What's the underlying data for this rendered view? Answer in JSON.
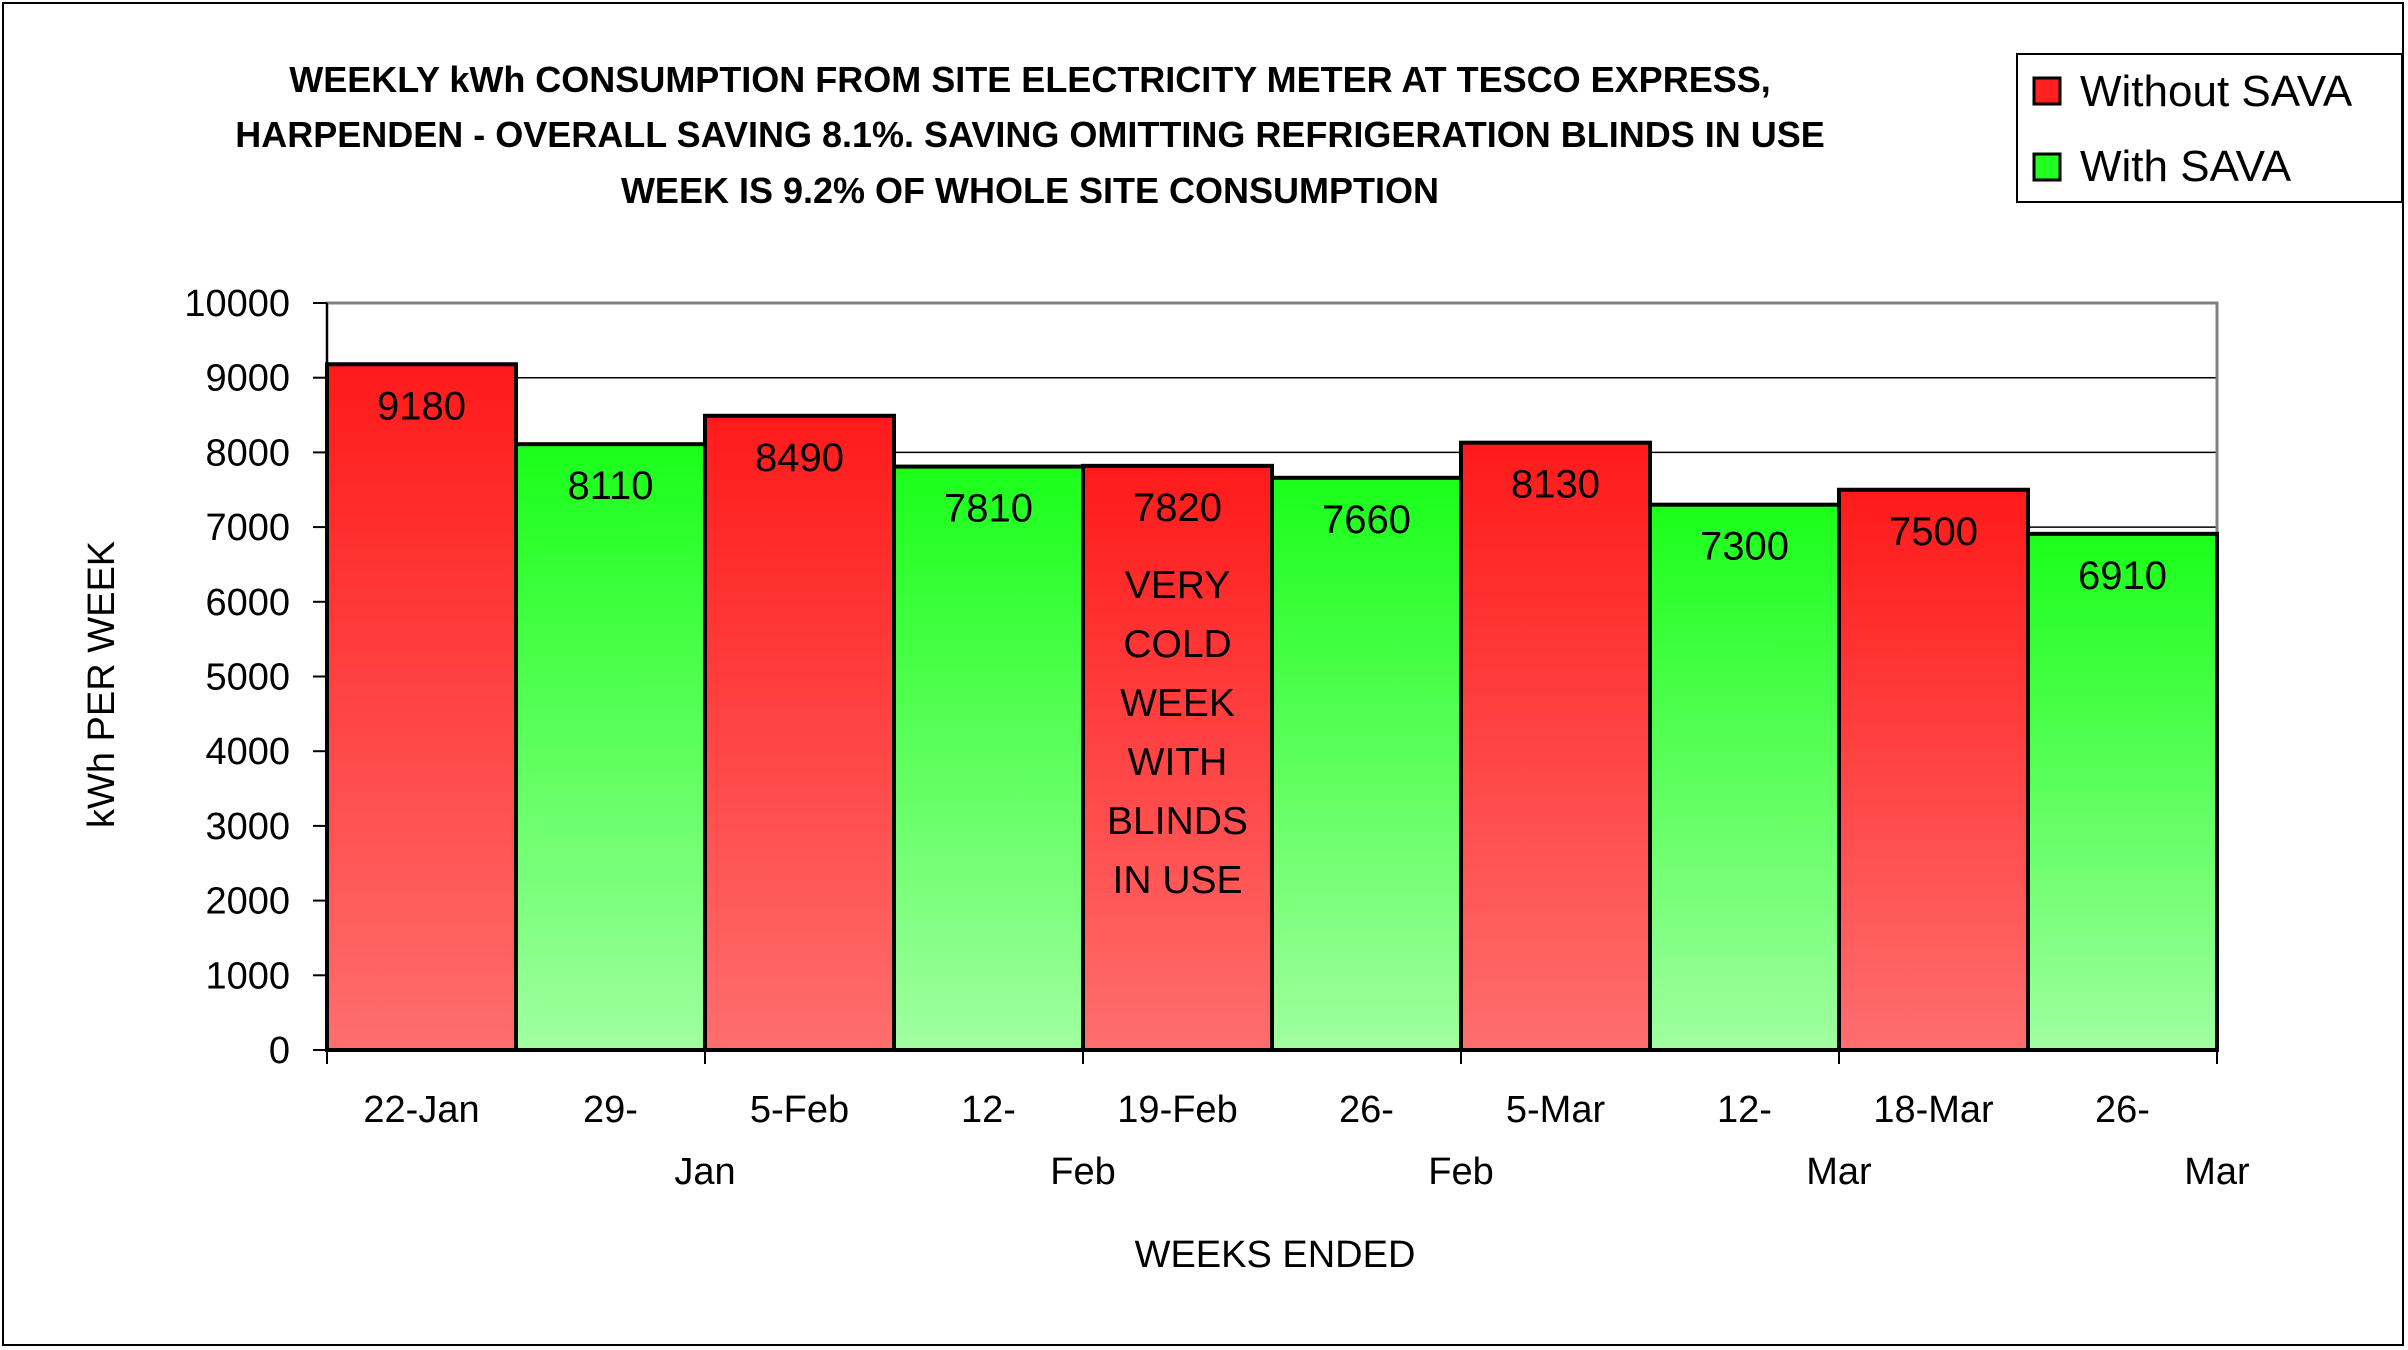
{
  "chart_data": {
    "type": "bar",
    "title_lines": [
      "WEEKLY kWh CONSUMPTION FROM SITE ELECTRICITY METER AT TESCO EXPRESS,",
      "HARPENDEN - OVERALL SAVING 8.1%. SAVING OMITTING REFRIGERATION BLINDS IN USE",
      "WEEK IS 9.2% OF WHOLE SITE CONSUMPTION"
    ],
    "xlabel": "WEEKS ENDED",
    "ylabel": "kWh PER WEEK",
    "ylim": [
      0,
      10000
    ],
    "yticks": [
      0,
      1000,
      2000,
      3000,
      4000,
      5000,
      6000,
      7000,
      8000,
      9000,
      10000
    ],
    "categories": [
      [
        "22-Jan",
        ""
      ],
      [
        "29-",
        "Jan"
      ],
      [
        "5-Feb",
        ""
      ],
      [
        "12-",
        "Feb"
      ],
      [
        "19-Feb",
        ""
      ],
      [
        "26-",
        "Feb"
      ],
      [
        "5-Mar",
        ""
      ],
      [
        "12-",
        "Mar"
      ],
      [
        "18-Mar",
        ""
      ],
      [
        "26-",
        "Mar"
      ]
    ],
    "values": [
      9180,
      8110,
      8490,
      7810,
      7820,
      7660,
      8130,
      7300,
      7500,
      6910
    ],
    "series_of_bar": [
      "Without SAVA",
      "With SAVA",
      "Without SAVA",
      "With SAVA",
      "Without SAVA",
      "With SAVA",
      "Without SAVA",
      "With SAVA",
      "Without SAVA",
      "With SAVA"
    ],
    "series": [
      {
        "name": "Without SAVA",
        "color_top": "#ff1a1a",
        "color_bottom": "#ff6e6e"
      },
      {
        "name": "With SAVA",
        "color_top": "#1aff1a",
        "color_bottom": "#a0ffa0"
      }
    ],
    "annotation": {
      "bar_index": 4,
      "lines": [
        "VERY",
        "COLD",
        "WEEK",
        "WITH",
        "BLINDS",
        "IN USE"
      ]
    },
    "legend": {
      "placement": "top-right"
    },
    "grid": true
  }
}
